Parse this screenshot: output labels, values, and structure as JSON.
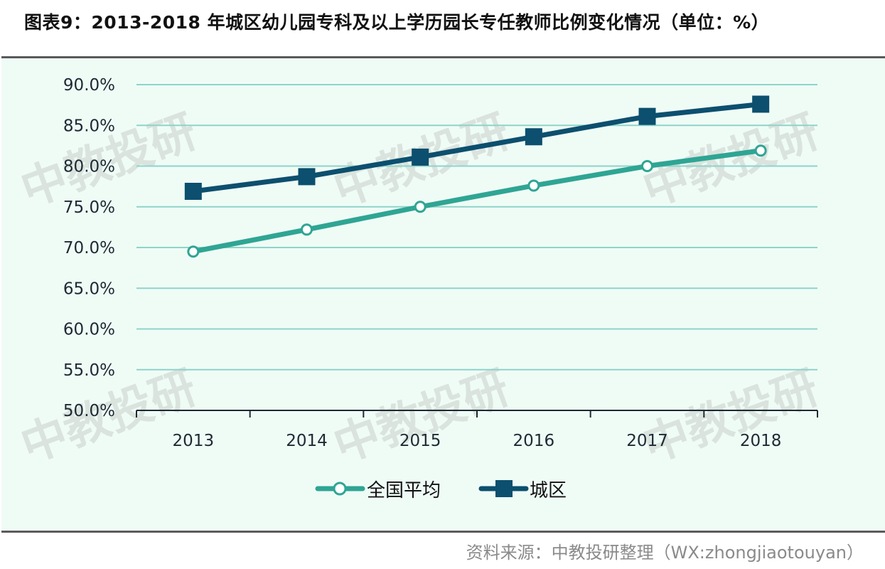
{
  "title": "图表9：2013-2018 年城区幼儿园专科及以上学历园长专任教师比例变化情况（单位：%）",
  "source": "资料来源：中教投研整理（WX:zhongjiaotouyan）",
  "watermark": "中教投研",
  "colors": {
    "panel_bg": "#effcf6",
    "grid": "#8fd3c9",
    "national": "#2fa594",
    "urban": "#0c4f6e",
    "axis": "#1d2a33"
  },
  "legend": {
    "national": "全国平均",
    "urban": "城区"
  },
  "chart_data": {
    "type": "line",
    "title": "2013-2018 年城区幼儿园专科及以上学历园长专任教师比例变化情况（单位：%）",
    "xlabel": "",
    "ylabel": "",
    "categories": [
      "2013",
      "2014",
      "2015",
      "2016",
      "2017",
      "2018"
    ],
    "y_ticks": [
      "50.0%",
      "55.0%",
      "60.0%",
      "65.0%",
      "70.0%",
      "75.0%",
      "80.0%",
      "85.0%",
      "90.0%"
    ],
    "ylim": [
      50,
      90
    ],
    "grid": true,
    "legend_position": "bottom",
    "series": [
      {
        "name": "全国平均",
        "marker": "circle-open",
        "values": [
          69.5,
          72.2,
          75.0,
          77.6,
          80.0,
          81.9
        ]
      },
      {
        "name": "城区",
        "marker": "square-filled",
        "values": [
          76.9,
          78.7,
          81.1,
          83.6,
          86.1,
          87.6
        ]
      }
    ]
  }
}
